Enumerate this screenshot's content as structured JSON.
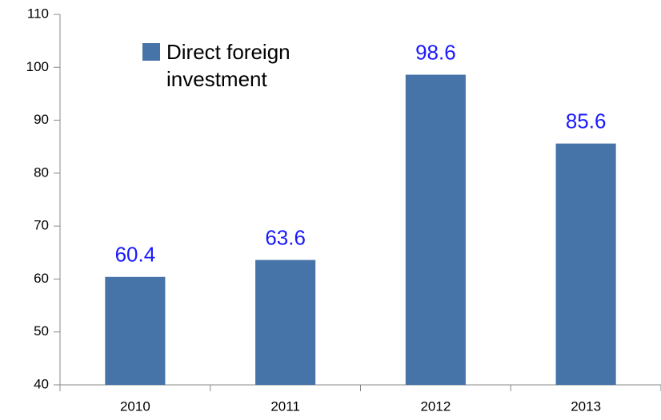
{
  "chart_data": {
    "type": "bar",
    "categories": [
      "2010",
      "2011",
      "2012",
      "2013"
    ],
    "series": [
      {
        "name": "Direct foreign investment",
        "color": "#4674a8",
        "values": [
          60.4,
          63.6,
          98.6,
          85.6
        ]
      }
    ],
    "ylim": [
      40,
      110
    ],
    "yticks": [
      40,
      50,
      60,
      70,
      80,
      90,
      100,
      110
    ],
    "grid": false,
    "legend": "upper left"
  }
}
